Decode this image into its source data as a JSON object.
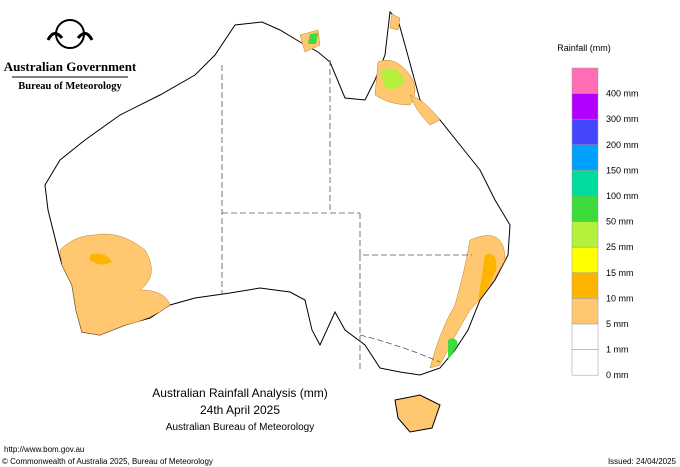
{
  "header": {
    "government": "Australian Government",
    "bureau": "Bureau of Meteorology"
  },
  "legend": {
    "title": "Rainfall (mm)",
    "top_color": "#ff6eb4",
    "items": [
      {
        "label": "400 mm",
        "color": "#ff3cf0"
      },
      {
        "label": "300 mm",
        "color": "#b400ff"
      },
      {
        "label": "200 mm",
        "color": "#4646ff"
      },
      {
        "label": "150 mm",
        "color": "#00a0ff"
      },
      {
        "label": "100 mm",
        "color": "#00dca0"
      },
      {
        "label": "50 mm",
        "color": "#3cdc3c"
      },
      {
        "label": "25 mm",
        "color": "#b4f03c"
      },
      {
        "label": "15 mm",
        "color": "#ffff00"
      },
      {
        "label": "10 mm",
        "color": "#ffb400"
      },
      {
        "label": "5 mm",
        "color": "#ffc870"
      },
      {
        "label": "1 mm",
        "color": "#ffffff"
      },
      {
        "label": "0 mm",
        "color": "#ffffff"
      }
    ]
  },
  "title": {
    "line1": "Australian Rainfall Analysis (mm)",
    "line2": "24th April 2025",
    "line3": "Australian Bureau of Meteorology"
  },
  "footer": {
    "url": "http://www.bom.gov.au",
    "copyright": "© Commonwealth of Australia 2025, Bureau of Meteorology",
    "issued": "Issued: 24/04/2025"
  }
}
